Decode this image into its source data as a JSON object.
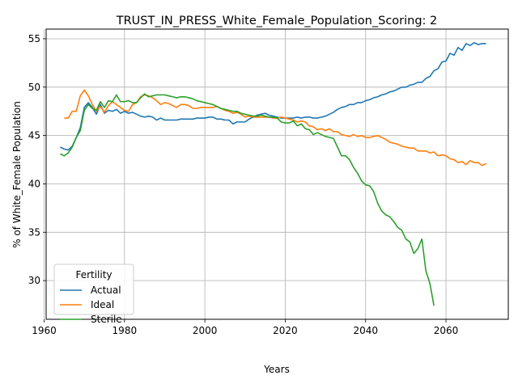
{
  "chart_data": {
    "type": "line",
    "title": "TRUST_IN_PRESS_White_Female_Population_Scoring: 2",
    "xlabel": "Years",
    "ylabel": "% of White_Female Population",
    "xlim": [
      1960.5,
      2075.5
    ],
    "ylim": [
      26.0,
      56.0
    ],
    "xticks": [
      1960,
      1980,
      2000,
      2020,
      2040,
      2060
    ],
    "yticks": [
      30,
      35,
      40,
      45,
      50,
      55
    ],
    "grid": true,
    "legend": {
      "title": "Fertility",
      "placement": "lower-left"
    },
    "series": [
      {
        "name": "Actual",
        "color": "#1f77b4",
        "points": [
          [
            1964,
            43.8
          ],
          [
            1965,
            43.6
          ],
          [
            1966,
            43.5
          ],
          [
            1967,
            43.9
          ],
          [
            1968,
            44.8
          ],
          [
            1969,
            45.8
          ],
          [
            1970,
            47.9
          ],
          [
            1971,
            48.4
          ],
          [
            1972,
            47.9
          ],
          [
            1973,
            47.2
          ],
          [
            1974,
            48.2
          ],
          [
            1975,
            47.3
          ],
          [
            1976,
            47.6
          ],
          [
            1977,
            47.5
          ],
          [
            1978,
            47.7
          ],
          [
            1979,
            47.3
          ],
          [
            1980,
            47.5
          ],
          [
            1981,
            47.3
          ],
          [
            1982,
            47.4
          ],
          [
            1983,
            47.2
          ],
          [
            1984,
            47.0
          ],
          [
            1985,
            46.9
          ],
          [
            1986,
            47.0
          ],
          [
            1987,
            46.9
          ],
          [
            1988,
            46.6
          ],
          [
            1989,
            46.8
          ],
          [
            1990,
            46.6
          ],
          [
            1991,
            46.6
          ],
          [
            1992,
            46.6
          ],
          [
            1993,
            46.6
          ],
          [
            1994,
            46.7
          ],
          [
            1995,
            46.7
          ],
          [
            1996,
            46.7
          ],
          [
            1997,
            46.7
          ],
          [
            1998,
            46.8
          ],
          [
            1999,
            46.8
          ],
          [
            2000,
            46.8
          ],
          [
            2001,
            46.9
          ],
          [
            2002,
            46.9
          ],
          [
            2003,
            46.7
          ],
          [
            2004,
            46.7
          ],
          [
            2005,
            46.6
          ],
          [
            2006,
            46.6
          ],
          [
            2007,
            46.2
          ],
          [
            2008,
            46.4
          ],
          [
            2009,
            46.4
          ],
          [
            2010,
            46.4
          ],
          [
            2011,
            46.7
          ],
          [
            2012,
            46.9
          ],
          [
            2013,
            47.1
          ],
          [
            2014,
            47.2
          ],
          [
            2015,
            47.3
          ],
          [
            2016,
            47.1
          ],
          [
            2017,
            47.0
          ],
          [
            2018,
            46.9
          ],
          [
            2019,
            46.8
          ],
          [
            2020,
            46.8
          ],
          [
            2021,
            46.8
          ],
          [
            2022,
            46.8
          ],
          [
            2023,
            46.9
          ],
          [
            2024,
            46.8
          ],
          [
            2025,
            46.9
          ],
          [
            2026,
            46.9
          ],
          [
            2027,
            46.8
          ],
          [
            2028,
            46.8
          ],
          [
            2029,
            46.9
          ],
          [
            2030,
            47.0
          ],
          [
            2031,
            47.2
          ],
          [
            2032,
            47.4
          ],
          [
            2033,
            47.7
          ],
          [
            2034,
            47.9
          ],
          [
            2035,
            48.0
          ],
          [
            2036,
            48.2
          ],
          [
            2037,
            48.2
          ],
          [
            2038,
            48.4
          ],
          [
            2039,
            48.4
          ],
          [
            2040,
            48.6
          ],
          [
            2041,
            48.7
          ],
          [
            2042,
            48.9
          ],
          [
            2043,
            49.0
          ],
          [
            2044,
            49.2
          ],
          [
            2045,
            49.3
          ],
          [
            2046,
            49.5
          ],
          [
            2047,
            49.6
          ],
          [
            2048,
            49.8
          ],
          [
            2049,
            50.0
          ],
          [
            2050,
            50.0
          ],
          [
            2051,
            50.2
          ],
          [
            2052,
            50.3
          ],
          [
            2053,
            50.5
          ],
          [
            2054,
            50.5
          ],
          [
            2055,
            50.9
          ],
          [
            2056,
            51.1
          ],
          [
            2057,
            51.7
          ],
          [
            2058,
            51.9
          ],
          [
            2059,
            52.6
          ],
          [
            2060,
            52.7
          ],
          [
            2061,
            53.5
          ],
          [
            2062,
            53.3
          ],
          [
            2063,
            54.1
          ],
          [
            2064,
            53.8
          ],
          [
            2065,
            54.5
          ],
          [
            2066,
            54.3
          ],
          [
            2067,
            54.6
          ],
          [
            2068,
            54.4
          ],
          [
            2069,
            54.5
          ],
          [
            2070,
            54.5
          ]
        ]
      },
      {
        "name": "Ideal",
        "color": "#ff7f0e",
        "points": [
          [
            1965,
            46.8
          ],
          [
            1966,
            46.8
          ],
          [
            1967,
            47.5
          ],
          [
            1968,
            47.5
          ],
          [
            1969,
            49.1
          ],
          [
            1970,
            49.7
          ],
          [
            1971,
            49.1
          ],
          [
            1972,
            48.2
          ],
          [
            1973,
            47.5
          ],
          [
            1974,
            48.0
          ],
          [
            1975,
            47.4
          ],
          [
            1976,
            48.1
          ],
          [
            1977,
            48.5
          ],
          [
            1978,
            48.2
          ],
          [
            1979,
            47.9
          ],
          [
            1980,
            47.6
          ],
          [
            1981,
            47.5
          ],
          [
            1982,
            48.2
          ],
          [
            1983,
            48.4
          ],
          [
            1984,
            49.0
          ],
          [
            1985,
            49.2
          ],
          [
            1986,
            49.1
          ],
          [
            1987,
            48.9
          ],
          [
            1988,
            48.6
          ],
          [
            1989,
            48.2
          ],
          [
            1990,
            48.4
          ],
          [
            1991,
            48.3
          ],
          [
            1992,
            48.1
          ],
          [
            1993,
            47.9
          ],
          [
            1994,
            48.2
          ],
          [
            1995,
            48.2
          ],
          [
            1996,
            48.1
          ],
          [
            1997,
            47.8
          ],
          [
            1998,
            47.8
          ],
          [
            1999,
            47.9
          ],
          [
            2000,
            47.9
          ],
          [
            2001,
            47.9
          ],
          [
            2002,
            47.9
          ],
          [
            2003,
            48.0
          ],
          [
            2004,
            47.8
          ],
          [
            2005,
            47.6
          ],
          [
            2006,
            47.5
          ],
          [
            2007,
            47.3
          ],
          [
            2008,
            47.4
          ],
          [
            2009,
            47.2
          ],
          [
            2010,
            46.9
          ],
          [
            2011,
            47.0
          ],
          [
            2012,
            46.9
          ],
          [
            2013,
            46.9
          ],
          [
            2014,
            46.9
          ],
          [
            2015,
            46.9
          ],
          [
            2016,
            46.9
          ],
          [
            2017,
            46.8
          ],
          [
            2018,
            46.8
          ],
          [
            2019,
            46.9
          ],
          [
            2020,
            46.8
          ],
          [
            2021,
            46.7
          ],
          [
            2022,
            46.6
          ],
          [
            2023,
            46.4
          ],
          [
            2024,
            46.5
          ],
          [
            2025,
            46.4
          ],
          [
            2026,
            46.0
          ],
          [
            2027,
            45.9
          ],
          [
            2028,
            45.6
          ],
          [
            2029,
            45.7
          ],
          [
            2030,
            45.5
          ],
          [
            2031,
            45.7
          ],
          [
            2032,
            45.4
          ],
          [
            2033,
            45.4
          ],
          [
            2034,
            45.1
          ],
          [
            2035,
            45.0
          ],
          [
            2036,
            44.9
          ],
          [
            2037,
            45.1
          ],
          [
            2038,
            44.9
          ],
          [
            2039,
            45.0
          ],
          [
            2040,
            44.8
          ],
          [
            2041,
            44.8
          ],
          [
            2042,
            44.9
          ],
          [
            2043,
            45.0
          ],
          [
            2044,
            44.8
          ],
          [
            2045,
            44.6
          ],
          [
            2046,
            44.3
          ],
          [
            2047,
            44.2
          ],
          [
            2048,
            44.1
          ],
          [
            2049,
            43.9
          ],
          [
            2050,
            43.8
          ],
          [
            2051,
            43.7
          ],
          [
            2052,
            43.7
          ],
          [
            2053,
            43.4
          ],
          [
            2054,
            43.4
          ],
          [
            2055,
            43.4
          ],
          [
            2056,
            43.2
          ],
          [
            2057,
            43.3
          ],
          [
            2058,
            42.9
          ],
          [
            2059,
            43.0
          ],
          [
            2060,
            42.9
          ],
          [
            2061,
            42.6
          ],
          [
            2062,
            42.5
          ],
          [
            2063,
            42.2
          ],
          [
            2064,
            42.3
          ],
          [
            2065,
            42.0
          ],
          [
            2066,
            42.4
          ],
          [
            2067,
            42.2
          ],
          [
            2068,
            42.2
          ],
          [
            2069,
            41.9
          ],
          [
            2070,
            42.1
          ]
        ]
      },
      {
        "name": "Sterile",
        "color": "#2ca02c",
        "points": [
          [
            1964,
            43.1
          ],
          [
            1965,
            42.9
          ],
          [
            1966,
            43.2
          ],
          [
            1967,
            43.8
          ],
          [
            1968,
            44.8
          ],
          [
            1969,
            45.5
          ],
          [
            1970,
            47.6
          ],
          [
            1971,
            48.2
          ],
          [
            1972,
            47.8
          ],
          [
            1973,
            47.6
          ],
          [
            1974,
            48.5
          ],
          [
            1975,
            47.9
          ],
          [
            1976,
            48.6
          ],
          [
            1977,
            48.5
          ],
          [
            1978,
            49.2
          ],
          [
            1979,
            48.5
          ],
          [
            1980,
            48.5
          ],
          [
            1981,
            48.6
          ],
          [
            1982,
            48.4
          ],
          [
            1983,
            48.4
          ],
          [
            1984,
            48.9
          ],
          [
            1985,
            49.3
          ],
          [
            1986,
            49.0
          ],
          [
            1987,
            49.1
          ],
          [
            1988,
            49.2
          ],
          [
            1989,
            49.2
          ],
          [
            1990,
            49.2
          ],
          [
            1991,
            49.1
          ],
          [
            1992,
            49.0
          ],
          [
            1993,
            48.9
          ],
          [
            1994,
            49.0
          ],
          [
            1995,
            49.0
          ],
          [
            1996,
            48.9
          ],
          [
            1997,
            48.8
          ],
          [
            1998,
            48.6
          ],
          [
            1999,
            48.5
          ],
          [
            2000,
            48.4
          ],
          [
            2001,
            48.3
          ],
          [
            2002,
            48.2
          ],
          [
            2003,
            48.0
          ],
          [
            2004,
            47.8
          ],
          [
            2005,
            47.7
          ],
          [
            2006,
            47.6
          ],
          [
            2007,
            47.5
          ],
          [
            2008,
            47.5
          ],
          [
            2009,
            47.3
          ],
          [
            2010,
            47.2
          ],
          [
            2011,
            47.1
          ],
          [
            2012,
            47.0
          ],
          [
            2013,
            47.0
          ],
          [
            2014,
            47.1
          ],
          [
            2015,
            47.0
          ],
          [
            2016,
            46.9
          ],
          [
            2017,
            46.9
          ],
          [
            2018,
            46.8
          ],
          [
            2019,
            46.4
          ],
          [
            2020,
            46.3
          ],
          [
            2021,
            46.3
          ],
          [
            2022,
            46.5
          ],
          [
            2023,
            46.0
          ],
          [
            2024,
            46.2
          ],
          [
            2025,
            45.7
          ],
          [
            2026,
            45.6
          ],
          [
            2027,
            45.1
          ],
          [
            2028,
            45.3
          ],
          [
            2029,
            45.1
          ],
          [
            2030,
            44.9
          ],
          [
            2031,
            44.8
          ],
          [
            2032,
            44.7
          ],
          [
            2033,
            43.8
          ],
          [
            2034,
            42.9
          ],
          [
            2035,
            42.9
          ],
          [
            2036,
            42.5
          ],
          [
            2037,
            41.7
          ],
          [
            2038,
            41.1
          ],
          [
            2039,
            40.3
          ],
          [
            2040,
            39.9
          ],
          [
            2041,
            39.8
          ],
          [
            2042,
            39.2
          ],
          [
            2043,
            38.0
          ],
          [
            2044,
            37.2
          ],
          [
            2045,
            36.8
          ],
          [
            2046,
            36.6
          ],
          [
            2047,
            36.1
          ],
          [
            2048,
            35.5
          ],
          [
            2049,
            35.2
          ],
          [
            2050,
            34.3
          ],
          [
            2051,
            34.0
          ],
          [
            2052,
            32.8
          ],
          [
            2053,
            33.3
          ],
          [
            2054,
            34.3
          ],
          [
            2055,
            31.0
          ],
          [
            2056,
            29.7
          ],
          [
            2057,
            27.4
          ]
        ]
      }
    ]
  }
}
